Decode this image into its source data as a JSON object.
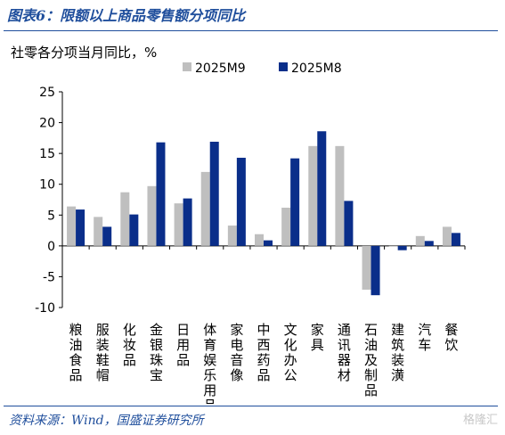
{
  "figure_title": "图表6：限额以上商品零售额分项同比",
  "source": "资料来源：Wind，国盛证券研究所",
  "watermark": "格隆汇",
  "chart_data": {
    "type": "bar",
    "title": "社零各分项当月同比，%",
    "xlabel": "",
    "ylabel": "",
    "ylim": [
      -10,
      25
    ],
    "yticks": [
      -10,
      -5,
      0,
      5,
      10,
      15,
      20,
      25
    ],
    "grid": false,
    "legend_position": "top",
    "categories": [
      "粮油食品",
      "服装鞋帽",
      "化妆品",
      "金银珠宝",
      "日用品",
      "体育娱乐用品",
      "家电音像",
      "中西药品",
      "文化办公",
      "家具",
      "通讯器材",
      "石油及制品",
      "建筑装潢",
      "汽车",
      "餐饮"
    ],
    "series": [
      {
        "name": "2025M9",
        "color": "#bfbfbf",
        "values": [
          6.4,
          4.7,
          8.7,
          9.7,
          6.9,
          12.0,
          3.3,
          1.9,
          6.2,
          16.2,
          16.2,
          -7.1,
          -0.1,
          1.6,
          3.1
        ]
      },
      {
        "name": "2025M8",
        "color": "#0a2e8a",
        "values": [
          5.9,
          3.1,
          5.1,
          16.8,
          7.7,
          16.9,
          14.3,
          0.9,
          14.2,
          18.6,
          7.3,
          -8.0,
          -0.7,
          0.8,
          2.1
        ]
      }
    ]
  }
}
